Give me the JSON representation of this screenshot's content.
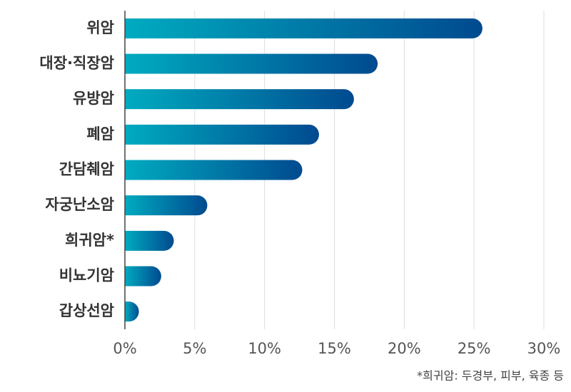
{
  "chart_data": {
    "type": "bar",
    "orientation": "horizontal",
    "categories": [
      "위암",
      "대장·직장암",
      "유방암",
      "폐암",
      "간담췌암",
      "자궁난소암",
      "희귀암*",
      "비뇨기암",
      "갑상선암"
    ],
    "values": [
      25.6,
      18.1,
      16.4,
      13.9,
      12.7,
      5.9,
      3.5,
      2.6,
      1.0
    ],
    "colors": [
      "#00abc0",
      "#004a8f"
    ],
    "xlim": [
      0,
      30
    ],
    "xticks": [
      {
        "value": 0,
        "label": "0%"
      },
      {
        "value": 5,
        "label": "5%"
      },
      {
        "value": 10,
        "label": "10%"
      },
      {
        "value": 15,
        "label": "15%"
      },
      {
        "value": 20,
        "label": "20%"
      },
      {
        "value": 25,
        "label": "25%"
      },
      {
        "value": 30,
        "label": "30%"
      }
    ],
    "grid": true,
    "note": "*희귀암: 두경부, 피부, 육종 등"
  }
}
